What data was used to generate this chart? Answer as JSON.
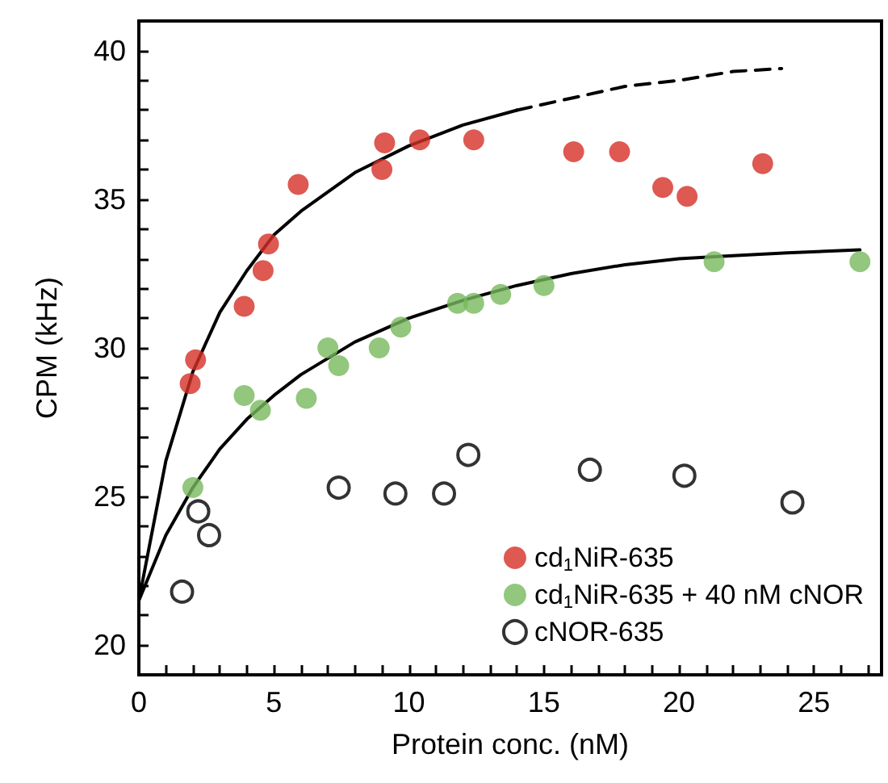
{
  "chart_data": {
    "type": "scatter",
    "xlabel": "Protein conc. (nM)",
    "ylabel": "CPM (kHz)",
    "xlim": [
      0,
      27.5
    ],
    "ylim": [
      19,
      41
    ],
    "xticks": [
      0,
      {
        "value": 1,
        "label": null
      },
      {
        "value": 2,
        "label": null
      },
      {
        "value": 3,
        "label": null
      },
      {
        "value": 4,
        "label": null
      },
      5,
      {
        "value": 6,
        "label": null
      },
      {
        "value": 7,
        "label": null
      },
      {
        "value": 8,
        "label": null
      },
      {
        "value": 9,
        "label": null
      },
      10,
      {
        "value": 11,
        "label": null
      },
      {
        "value": 12,
        "label": null
      },
      {
        "value": 13,
        "label": null
      },
      {
        "value": 14,
        "label": null
      },
      15,
      {
        "value": 16,
        "label": null
      },
      {
        "value": 17,
        "label": null
      },
      {
        "value": 18,
        "label": null
      },
      {
        "value": 19,
        "label": null
      },
      20,
      {
        "value": 21,
        "label": null
      },
      {
        "value": 22,
        "label": null
      },
      {
        "value": 23,
        "label": null
      },
      {
        "value": 24,
        "label": null
      },
      25,
      {
        "value": 26,
        "label": null
      },
      {
        "value": 27,
        "label": null
      }
    ],
    "yticks": [
      {
        "value": 19,
        "label": null
      },
      20,
      {
        "value": 21,
        "label": null
      },
      {
        "value": 22,
        "label": null
      },
      {
        "value": 23,
        "label": null
      },
      {
        "value": 24,
        "label": null
      },
      25,
      {
        "value": 26,
        "label": null
      },
      {
        "value": 27,
        "label": null
      },
      {
        "value": 28,
        "label": null
      },
      {
        "value": 29,
        "label": null
      },
      30,
      {
        "value": 31,
        "label": null
      },
      {
        "value": 32,
        "label": null
      },
      {
        "value": 33,
        "label": null
      },
      {
        "value": 34,
        "label": null
      },
      35,
      {
        "value": 36,
        "label": null
      },
      {
        "value": 37,
        "label": null
      },
      {
        "value": 38,
        "label": null
      },
      {
        "value": 39,
        "label": null
      },
      40,
      {
        "value": 41,
        "label": null
      }
    ],
    "grid": false,
    "legend": "bottom right",
    "series": [
      {
        "name": "cd$_{1}$NiR-635",
        "color": "#d42f27",
        "marker": "circle",
        "x": [
          1.9,
          2.1,
          3.9,
          4.6,
          4.8,
          5.9,
          9.1,
          9.0,
          10.4,
          12.4,
          16.1,
          17.8,
          19.4,
          20.3,
          23.1
        ],
        "values": [
          28.8,
          29.6,
          31.4,
          32.6,
          33.5,
          35.5,
          36.9,
          36.0,
          37.0,
          37.0,
          36.6,
          36.6,
          35.4,
          35.1,
          36.2
        ]
      },
      {
        "name": "cd$_{1}$NiR-635 + 40 nM cNOR",
        "color": "#77b95c",
        "marker": "circle",
        "x": [
          2.0,
          3.9,
          4.5,
          6.2,
          7.0,
          7.4,
          8.9,
          9.7,
          11.8,
          12.4,
          13.4,
          15.0,
          21.3,
          26.7
        ],
        "values": [
          25.3,
          28.4,
          27.9,
          28.3,
          30.0,
          29.4,
          30.0,
          30.7,
          31.5,
          31.5,
          31.8,
          32.1,
          32.9,
          32.9
        ]
      },
      {
        "name": "cNOR-635",
        "color": "#000000",
        "marker": "circle-open",
        "x": [
          1.6,
          2.2,
          2.6,
          7.4,
          9.5,
          11.3,
          12.2,
          16.7,
          20.2,
          24.2
        ],
        "values": [
          21.8,
          24.5,
          23.7,
          25.3,
          25.1,
          25.1,
          26.4,
          25.9,
          25.7,
          24.8
        ]
      },
      {
        "type": "line",
        "color": "#000000",
        "marker": "none",
        "line_style": "solid",
        "x": [
          0,
          1,
          2,
          3,
          4,
          5,
          6,
          8,
          10,
          12,
          14
        ],
        "values": [
          21.5,
          26.2,
          29.2,
          31.2,
          32.6,
          33.8,
          34.6,
          35.9,
          36.8,
          37.5,
          38.0
        ]
      },
      {
        "type": "line",
        "color": "#000000",
        "marker": "none",
        "line_style": "dashed",
        "x": [
          14,
          16,
          18,
          20,
          22,
          23.8
        ],
        "values": [
          38.0,
          38.4,
          38.8,
          39.0,
          39.3,
          39.4
        ]
      },
      {
        "type": "line",
        "color": "#000000",
        "marker": "none",
        "line_style": "solid",
        "x": [
          0,
          1,
          2,
          3,
          4,
          5,
          6,
          8,
          10,
          12,
          14,
          16,
          18,
          20,
          22,
          24,
          26.7
        ],
        "values": [
          21.5,
          23.7,
          25.3,
          26.6,
          27.6,
          28.4,
          29.1,
          30.2,
          31.0,
          31.6,
          32.1,
          32.5,
          32.8,
          33.0,
          33.1,
          33.2,
          33.3
        ]
      }
    ]
  }
}
